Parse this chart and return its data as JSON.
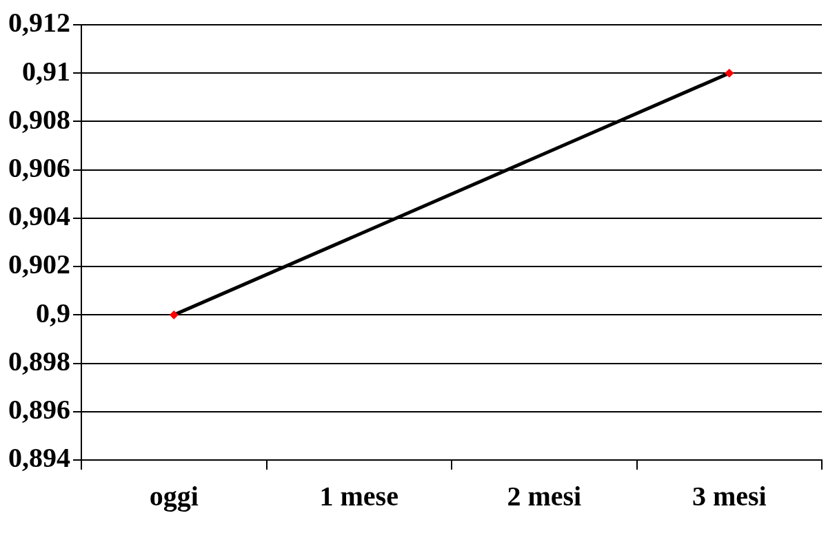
{
  "chart_data": {
    "type": "line",
    "categories": [
      "oggi",
      "1 mese",
      "2 mesi",
      "3 mesi"
    ],
    "series": [
      {
        "color": "#000000",
        "colors": [
          "#ff0000",
          null,
          null,
          "#ff0000"
        ],
        "values": [
          0.9,
          null,
          null,
          0.91
        ]
      }
    ],
    "ylim": [
      0.894,
      0.912
    ],
    "yticks": [
      {
        "value": 0.894,
        "label": "0,894"
      },
      {
        "value": 0.896,
        "label": "0,896"
      },
      {
        "value": 0.898,
        "label": "0,898"
      },
      {
        "value": 0.9,
        "label": "0,9"
      },
      {
        "value": 0.902,
        "label": "0,902"
      },
      {
        "value": 0.904,
        "label": "0,904"
      },
      {
        "value": 0.906,
        "label": "0,906"
      },
      {
        "value": 0.908,
        "label": "0,908"
      },
      {
        "value": 0.91,
        "label": "0,91"
      },
      {
        "value": 0.912,
        "label": "0,912"
      }
    ],
    "grid": "y",
    "legend": false,
    "marker": "diamond",
    "line_style": "solid"
  }
}
